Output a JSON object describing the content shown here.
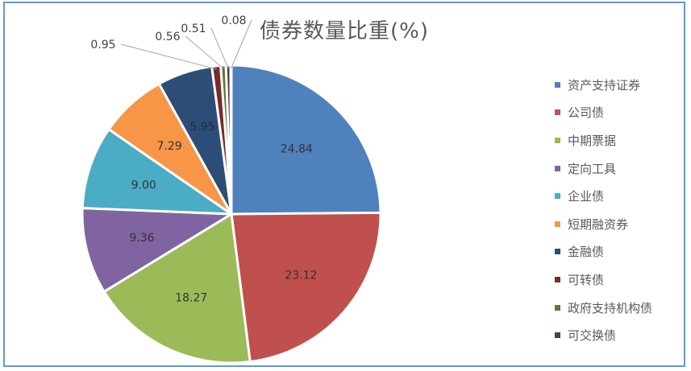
{
  "chart_data": {
    "type": "pie",
    "title": "债券数量比重(%)",
    "start": "12 o'clock, clockwise",
    "slices": [
      {
        "name": "资产支持证券",
        "value": 24.84,
        "color": "#4f81bd"
      },
      {
        "name": "公司债",
        "value": 23.12,
        "color": "#c0504d"
      },
      {
        "name": "中期票据",
        "value": 18.27,
        "color": "#9bbb59"
      },
      {
        "name": "定向工具",
        "value": 9.36,
        "color": "#8064a2"
      },
      {
        "name": "企业债",
        "value": 9.0,
        "color": "#4bacc6"
      },
      {
        "name": "短期融资券",
        "value": 7.29,
        "color": "#f79646"
      },
      {
        "name": "金融债",
        "value": 5.95,
        "color": "#2c4d75"
      },
      {
        "name": "可转债",
        "value": 0.95,
        "color": "#772c2a"
      },
      {
        "name": "政府支持机构债",
        "value": 0.56,
        "color": "#5f7530"
      },
      {
        "name": "可交换债",
        "value": 0.51,
        "color": "#4d3b62"
      },
      {
        "name": "",
        "value": 0.08,
        "color": "#27687a"
      }
    ],
    "value_labels": [
      "24.84",
      "23.12",
      "18.27",
      "9.36",
      "9.00",
      "7.29",
      "5.95",
      "0.95",
      "0.56",
      "0.51",
      "0.08"
    ],
    "legend_position": "right"
  }
}
